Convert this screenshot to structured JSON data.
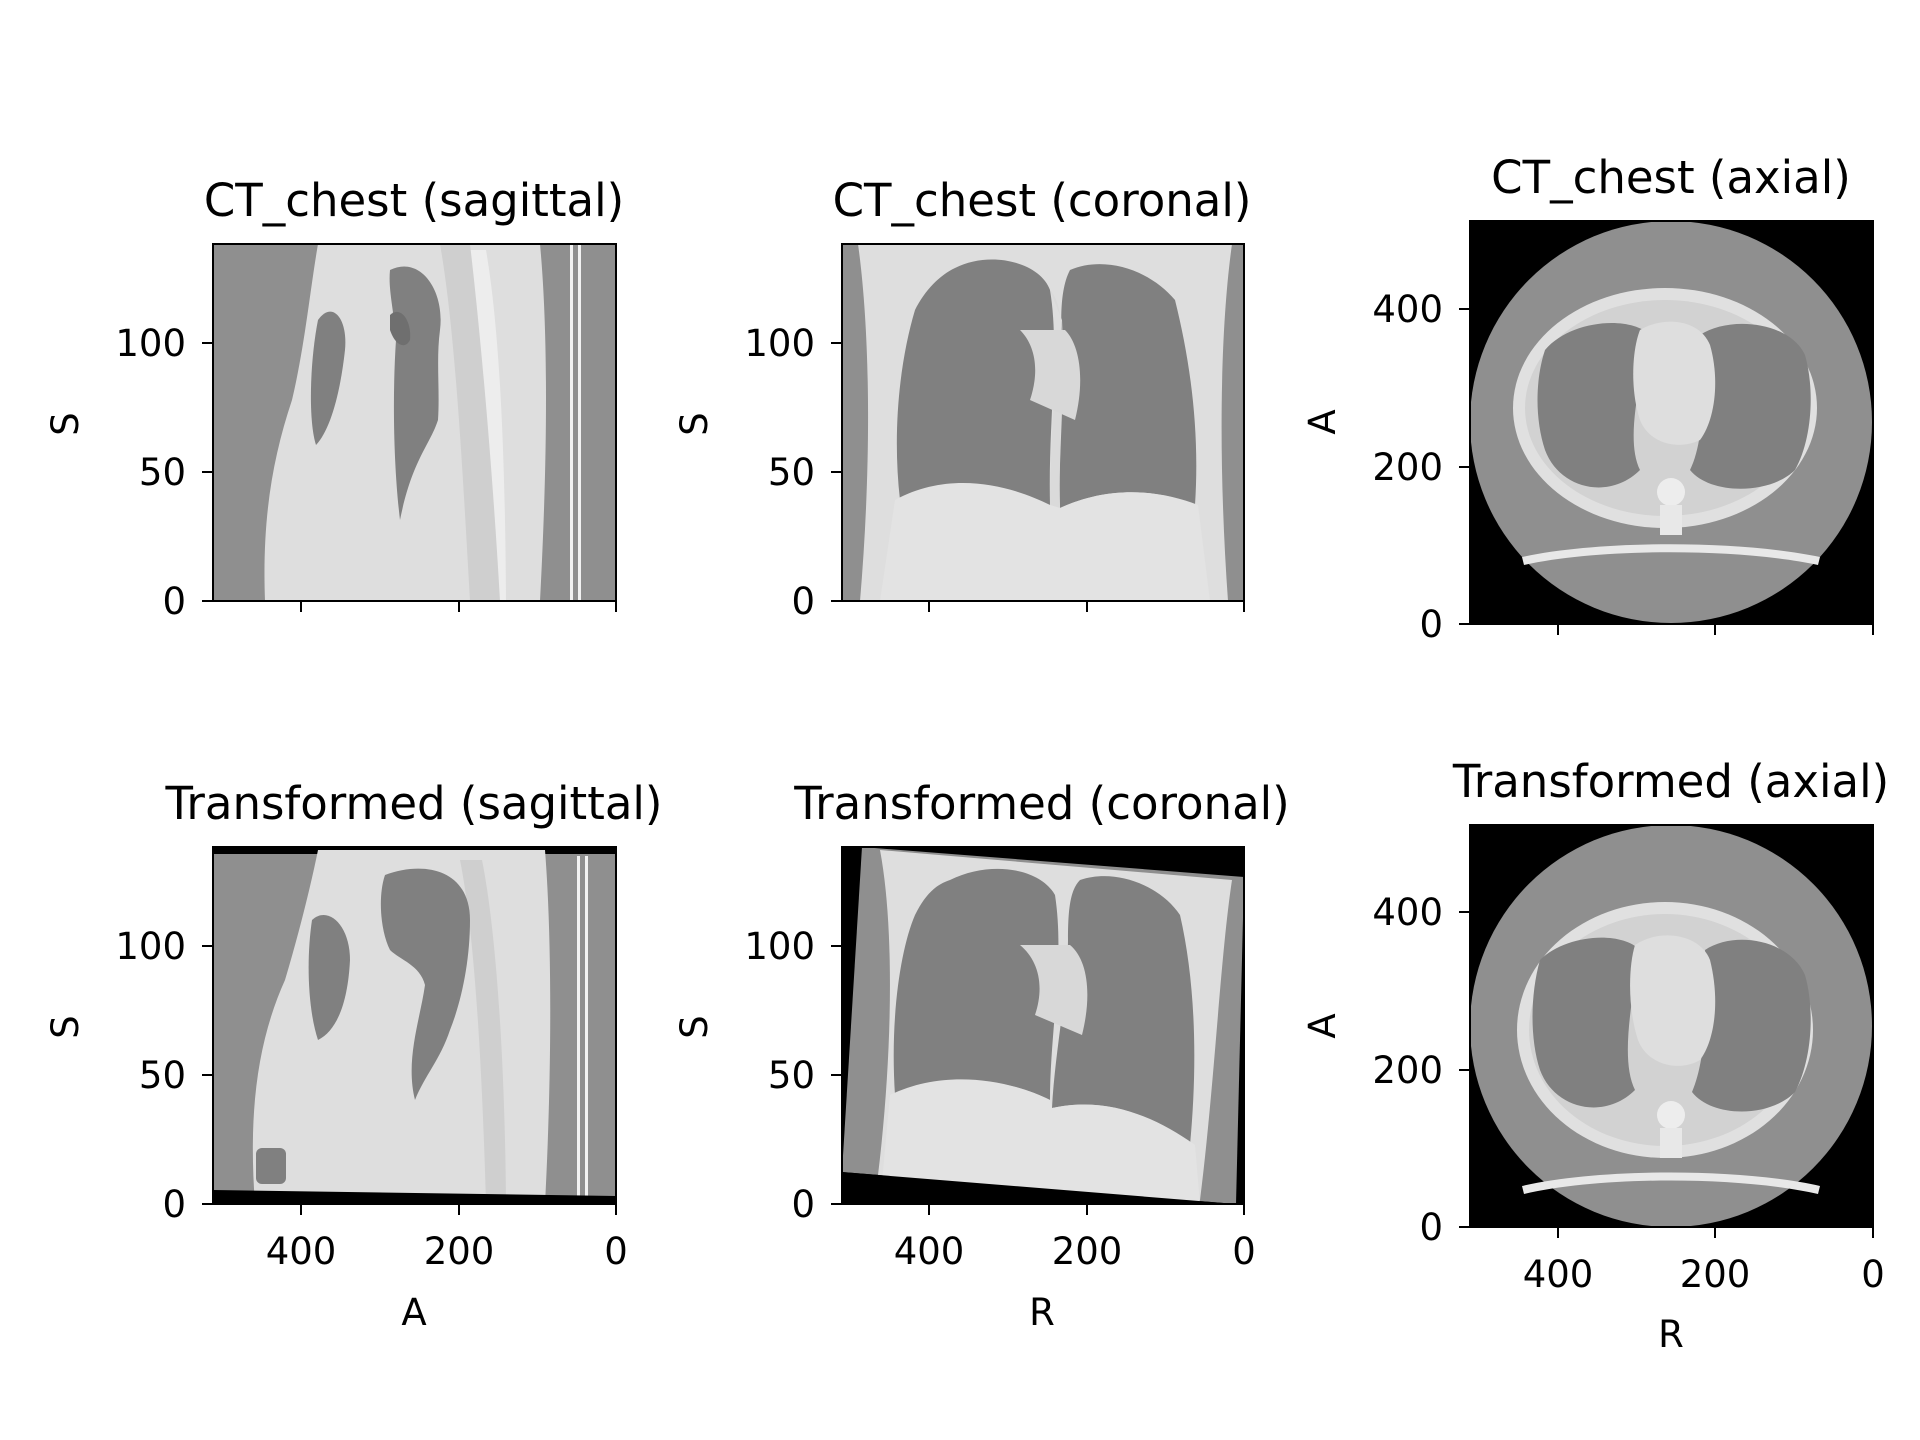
{
  "figure": {
    "panels": [
      {
        "id": "ct-sagittal",
        "title": "CT_chest (sagittal)",
        "xlabel": "",
        "ylabel": "S",
        "xticks": [],
        "yticks": [
          "0",
          "50",
          "100"
        ]
      },
      {
        "id": "ct-coronal",
        "title": "CT_chest (coronal)",
        "xlabel": "",
        "ylabel": "S",
        "xticks": [],
        "yticks": [
          "0",
          "50",
          "100"
        ]
      },
      {
        "id": "ct-axial",
        "title": "CT_chest (axial)",
        "xlabel": "",
        "ylabel": "A",
        "xticks": [],
        "yticks": [
          "0",
          "200",
          "400"
        ]
      },
      {
        "id": "tr-sagittal",
        "title": "Transformed (sagittal)",
        "xlabel": "A",
        "ylabel": "S",
        "xticks": [
          "400",
          "200",
          "0"
        ],
        "yticks": [
          "0",
          "50",
          "100"
        ]
      },
      {
        "id": "tr-coronal",
        "title": "Transformed (coronal)",
        "xlabel": "R",
        "ylabel": "S",
        "xticks": [
          "400",
          "200",
          "0"
        ],
        "yticks": [
          "0",
          "50",
          "100"
        ]
      },
      {
        "id": "tr-axial",
        "title": "Transformed (axial)",
        "xlabel": "R",
        "ylabel": "A",
        "xticks": [
          "400",
          "200",
          "0"
        ],
        "yticks": [
          "0",
          "200",
          "400"
        ]
      }
    ]
  }
}
